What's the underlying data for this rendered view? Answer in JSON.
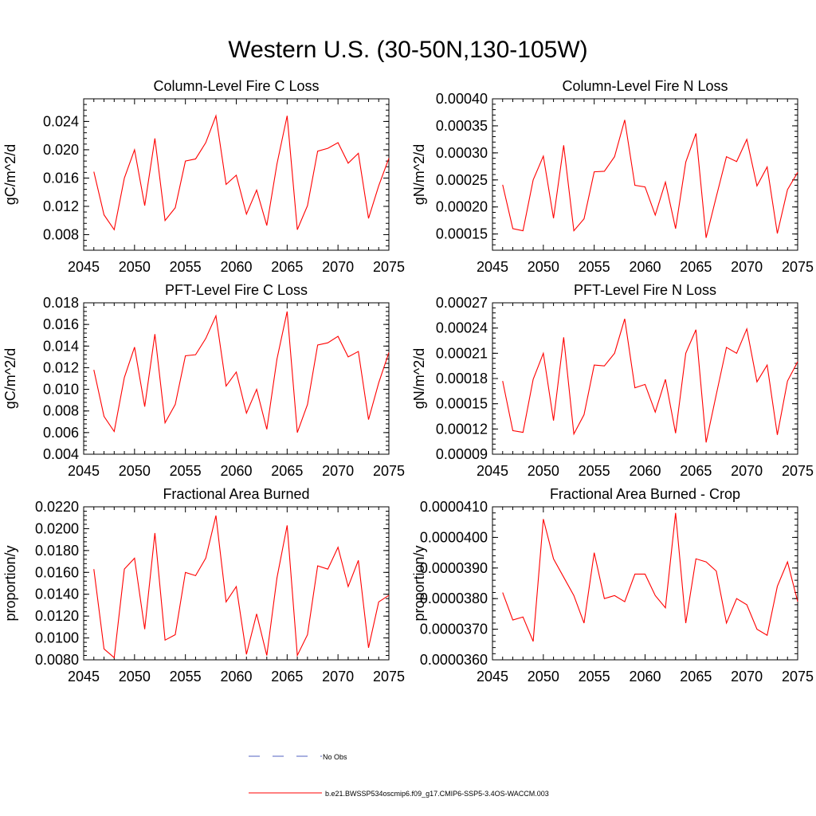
{
  "figure_title": "Western U.S. (30-50N,130-105W)",
  "legend": {
    "entries": [
      {
        "label": "No Obs",
        "color": "#5060c0",
        "style": "dashed"
      },
      {
        "label": "b.e21.BWSSP534oscmip6.f09_g17.CMIP6-SSP5-3.4OS-WACCM.003",
        "color": "#ff0000",
        "style": "solid"
      }
    ]
  },
  "chart_data": [
    {
      "type": "line",
      "title": "Column-Level Fire C Loss",
      "xlabel": "",
      "ylabel": "gC/m^2/d",
      "xlim": [
        2045,
        2075
      ],
      "ylim": [
        0.0058,
        0.0272
      ],
      "x_ticks": [
        2045,
        2050,
        2055,
        2060,
        2065,
        2070,
        2075
      ],
      "y_ticks": [
        "0.008",
        "0.012",
        "0.016",
        "0.020",
        "0.024"
      ],
      "y_tick_values": [
        0.008,
        0.012,
        0.016,
        0.02,
        0.024
      ],
      "series": [
        {
          "name": "b.e21.BWSSP534oscmip6.f09_g17.CMIP6-SSP5-3.4OS-WACCM.003",
          "color": "#ff0000",
          "x": [
            2046,
            2047,
            2048,
            2049,
            2050,
            2051,
            2052,
            2053,
            2054,
            2055,
            2056,
            2057,
            2058,
            2059,
            2060,
            2061,
            2062,
            2063,
            2064,
            2065,
            2066,
            2067,
            2068,
            2069,
            2070,
            2071,
            2072,
            2073,
            2074,
            2075
          ],
          "y": [
            0.0169,
            0.0108,
            0.0087,
            0.016,
            0.02,
            0.0121,
            0.0216,
            0.01,
            0.0118,
            0.0184,
            0.0187,
            0.021,
            0.0248,
            0.0151,
            0.0164,
            0.0109,
            0.0143,
            0.0093,
            0.018,
            0.0248,
            0.0087,
            0.0121,
            0.0198,
            0.0202,
            0.021,
            0.0181,
            0.0195,
            0.0103,
            0.0149,
            0.0188
          ]
        }
      ]
    },
    {
      "type": "line",
      "title": "Column-Level Fire N Loss",
      "xlabel": "",
      "ylabel": "gN/m^2/d",
      "xlim": [
        2045,
        2075
      ],
      "ylim": [
        0.00012,
        0.0004
      ],
      "x_ticks": [
        2045,
        2050,
        2055,
        2060,
        2065,
        2070,
        2075
      ],
      "y_ticks": [
        "0.00015",
        "0.00020",
        "0.00025",
        "0.00030",
        "0.00035",
        "0.00040"
      ],
      "y_tick_values": [
        0.00015,
        0.0002,
        0.00025,
        0.0003,
        0.00035,
        0.0004
      ],
      "series": [
        {
          "name": "b.e21.BWSSP534oscmip6.f09_g17.CMIP6-SSP5-3.4OS-WACCM.003",
          "color": "#ff0000",
          "x": [
            2046,
            2047,
            2048,
            2049,
            2050,
            2051,
            2052,
            2053,
            2054,
            2055,
            2056,
            2057,
            2058,
            2059,
            2060,
            2061,
            2062,
            2063,
            2064,
            2065,
            2066,
            2067,
            2068,
            2069,
            2070,
            2071,
            2072,
            2073,
            2074,
            2075
          ],
          "y": [
            0.000241,
            0.00016,
            0.000156,
            0.00025,
            0.000294,
            0.000179,
            0.000314,
            0.000156,
            0.000178,
            0.000265,
            0.000266,
            0.000293,
            0.000361,
            0.00024,
            0.000237,
            0.000185,
            0.000246,
            0.00016,
            0.000283,
            0.000336,
            0.000143,
            0.000219,
            0.000293,
            0.000284,
            0.000325,
            0.000239,
            0.000274,
            0.000151,
            0.000232,
            0.000264
          ]
        }
      ]
    },
    {
      "type": "line",
      "title": "PFT-Level Fire C Loss",
      "xlabel": "",
      "ylabel": "gC/m^2/d",
      "xlim": [
        2045,
        2075
      ],
      "ylim": [
        0.004,
        0.018
      ],
      "x_ticks": [
        2045,
        2050,
        2055,
        2060,
        2065,
        2070,
        2075
      ],
      "y_ticks": [
        "0.004",
        "0.006",
        "0.008",
        "0.010",
        "0.012",
        "0.014",
        "0.016",
        "0.018"
      ],
      "y_tick_values": [
        0.004,
        0.006,
        0.008,
        0.01,
        0.012,
        0.014,
        0.016,
        0.018
      ],
      "series": [
        {
          "name": "b.e21.BWSSP534oscmip6.f09_g17.CMIP6-SSP5-3.4OS-WACCM.003",
          "color": "#ff0000",
          "x": [
            2046,
            2047,
            2048,
            2049,
            2050,
            2051,
            2052,
            2053,
            2054,
            2055,
            2056,
            2057,
            2058,
            2059,
            2060,
            2061,
            2062,
            2063,
            2064,
            2065,
            2066,
            2067,
            2068,
            2069,
            2070,
            2071,
            2072,
            2073,
            2074,
            2075
          ],
          "y": [
            0.0118,
            0.0075,
            0.0061,
            0.0111,
            0.0139,
            0.0084,
            0.0151,
            0.0069,
            0.0086,
            0.0131,
            0.0132,
            0.0147,
            0.0168,
            0.0103,
            0.0116,
            0.0078,
            0.01,
            0.0063,
            0.0128,
            0.0172,
            0.006,
            0.0086,
            0.0141,
            0.0143,
            0.0149,
            0.013,
            0.0135,
            0.0072,
            0.0106,
            0.0134
          ]
        }
      ]
    },
    {
      "type": "line",
      "title": "PFT-Level Fire N Loss",
      "xlabel": "",
      "ylabel": "gN/m^2/d",
      "xlim": [
        2045,
        2075
      ],
      "ylim": [
        9e-05,
        0.00027
      ],
      "x_ticks": [
        2045,
        2050,
        2055,
        2060,
        2065,
        2070,
        2075
      ],
      "y_ticks": [
        "0.00009",
        "0.00012",
        "0.00015",
        "0.00018",
        "0.00021",
        "0.00024",
        "0.00027"
      ],
      "y_tick_values": [
        9e-05,
        0.00012,
        0.00015,
        0.00018,
        0.00021,
        0.00024,
        0.00027
      ],
      "series": [
        {
          "name": "b.e21.BWSSP534oscmip6.f09_g17.CMIP6-SSP5-3.4OS-WACCM.003",
          "color": "#ff0000",
          "x": [
            2046,
            2047,
            2048,
            2049,
            2050,
            2051,
            2052,
            2053,
            2054,
            2055,
            2056,
            2057,
            2058,
            2059,
            2060,
            2061,
            2062,
            2063,
            2064,
            2065,
            2066,
            2067,
            2068,
            2069,
            2070,
            2071,
            2072,
            2073,
            2074,
            2075
          ],
          "y": [
            0.000177,
            0.000118,
            0.000116,
            0.000179,
            0.00021,
            0.00013,
            0.000229,
            0.000114,
            0.000137,
            0.000196,
            0.000195,
            0.00021,
            0.000251,
            0.000169,
            0.000173,
            0.00014,
            0.000179,
            0.000115,
            0.00021,
            0.000238,
            0.000104,
            0.000161,
            0.000217,
            0.00021,
            0.000239,
            0.000176,
            0.000196,
            0.000113,
            0.000177,
            0.0002
          ]
        }
      ]
    },
    {
      "type": "line",
      "title": "Fractional Area Burned",
      "xlabel": "",
      "ylabel": "proportion/y",
      "xlim": [
        2045,
        2075
      ],
      "ylim": [
        0.008,
        0.022
      ],
      "x_ticks": [
        2045,
        2050,
        2055,
        2060,
        2065,
        2070,
        2075
      ],
      "y_ticks": [
        "0.0080",
        "0.0100",
        "0.0120",
        "0.0140",
        "0.0160",
        "0.0180",
        "0.0200",
        "0.0220"
      ],
      "y_tick_values": [
        0.008,
        0.01,
        0.012,
        0.014,
        0.016,
        0.018,
        0.02,
        0.022
      ],
      "series": [
        {
          "name": "b.e21.BWSSP534oscmip6.f09_g17.CMIP6-SSP5-3.4OS-WACCM.003",
          "color": "#ff0000",
          "x": [
            2046,
            2047,
            2048,
            2049,
            2050,
            2051,
            2052,
            2053,
            2054,
            2055,
            2056,
            2057,
            2058,
            2059,
            2060,
            2061,
            2062,
            2063,
            2064,
            2065,
            2066,
            2067,
            2068,
            2069,
            2070,
            2071,
            2072,
            2073,
            2074,
            2075
          ],
          "y": [
            0.0163,
            0.009,
            0.0082,
            0.0163,
            0.0173,
            0.0108,
            0.0196,
            0.0098,
            0.0103,
            0.016,
            0.0157,
            0.0173,
            0.0212,
            0.0133,
            0.0147,
            0.0085,
            0.0122,
            0.0084,
            0.0155,
            0.0203,
            0.0084,
            0.0103,
            0.0166,
            0.0163,
            0.0183,
            0.0147,
            0.0171,
            0.0091,
            0.0133,
            0.0139
          ]
        }
      ]
    },
    {
      "type": "line",
      "title": "Fractional Area Burned - Crop",
      "xlabel": "",
      "ylabel": "proportion/y",
      "xlim": [
        2045,
        2075
      ],
      "ylim": [
        3.6e-05,
        4.1e-05
      ],
      "x_ticks": [
        2045,
        2050,
        2055,
        2060,
        2065,
        2070,
        2075
      ],
      "y_ticks": [
        "0.0000360",
        "0.0000370",
        "0.0000380",
        "0.0000390",
        "0.0000400",
        "0.0000410"
      ],
      "y_tick_values": [
        3.6e-05,
        3.7e-05,
        3.8e-05,
        3.9e-05,
        4e-05,
        4.1e-05
      ],
      "series": [
        {
          "name": "b.e21.BWSSP534oscmip6.f09_g17.CMIP6-SSP5-3.4OS-WACCM.003",
          "color": "#ff0000",
          "x": [
            2046,
            2047,
            2048,
            2049,
            2050,
            2051,
            2052,
            2053,
            2054,
            2055,
            2056,
            2057,
            2058,
            2059,
            2060,
            2061,
            2062,
            2063,
            2064,
            2065,
            2066,
            2067,
            2068,
            2069,
            2070,
            2071,
            2072,
            2073,
            2074,
            2075
          ],
          "y": [
            3.82e-05,
            3.73e-05,
            3.74e-05,
            3.66e-05,
            4.06e-05,
            3.93e-05,
            3.87e-05,
            3.81e-05,
            3.72e-05,
            3.95e-05,
            3.8e-05,
            3.81e-05,
            3.79e-05,
            3.88e-05,
            3.88e-05,
            3.81e-05,
            3.77e-05,
            4.08e-05,
            3.72e-05,
            3.93e-05,
            3.92e-05,
            3.89e-05,
            3.72e-05,
            3.8e-05,
            3.78e-05,
            3.7e-05,
            3.68e-05,
            3.84e-05,
            3.92e-05,
            3.79e-05
          ]
        }
      ]
    }
  ]
}
